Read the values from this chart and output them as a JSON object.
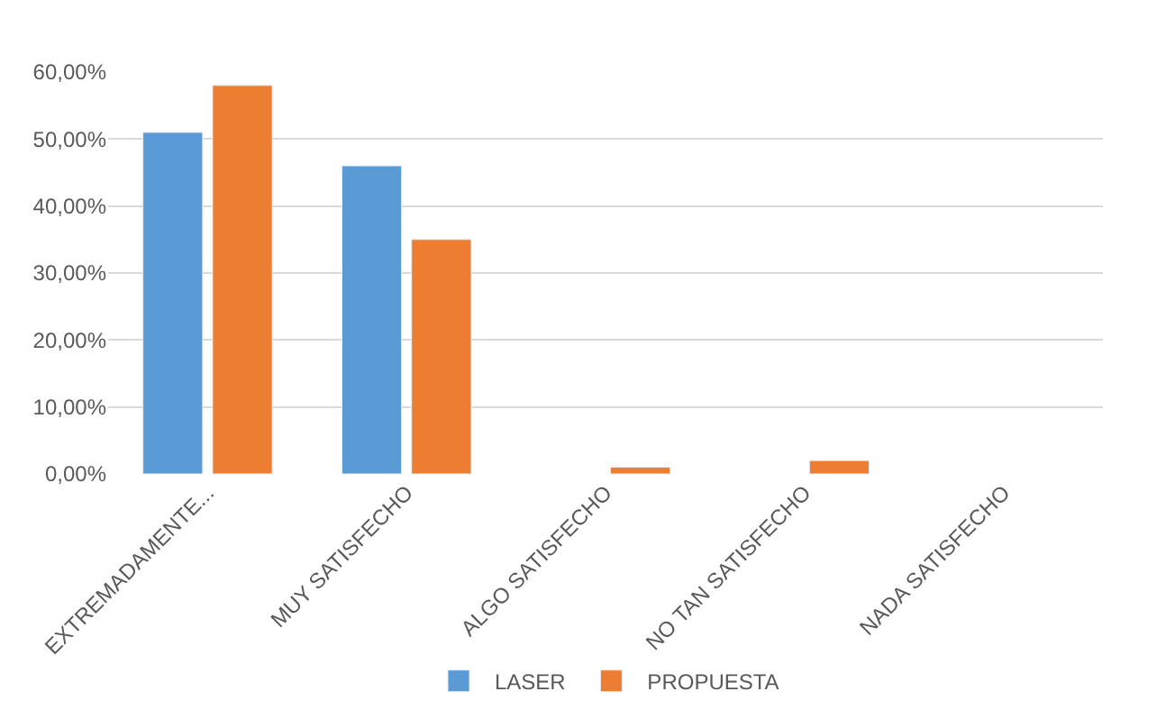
{
  "chart_data": {
    "type": "bar",
    "categories": [
      "EXTREMADAMENTE...",
      "MUY SATISFECHO",
      "ALGO SATISFECHO",
      "NO TAN SATISFECHO",
      "NADA SATISFECHO"
    ],
    "series": [
      {
        "name": "LASER",
        "color": "#5b9bd5",
        "values": [
          0.51,
          0.46,
          null,
          null,
          null
        ]
      },
      {
        "name": "PROPUESTA",
        "color": "#ed7d31",
        "values": [
          0.58,
          0.35,
          0.01,
          0.02,
          null
        ]
      }
    ],
    "ylim": [
      0,
      0.6
    ],
    "yticks": [
      {
        "value": 0,
        "label": "0,00%"
      },
      {
        "value": 0.1,
        "label": "10,00%"
      },
      {
        "value": 0.2,
        "label": "20,00%"
      },
      {
        "value": 0.3,
        "label": "30,00%"
      },
      {
        "value": 0.4,
        "label": "40,00%"
      },
      {
        "value": 0.5,
        "label": "50,00%"
      },
      {
        "value": 0.6,
        "label": "60,00%"
      }
    ],
    "grid": "y",
    "legend": "bottom"
  }
}
